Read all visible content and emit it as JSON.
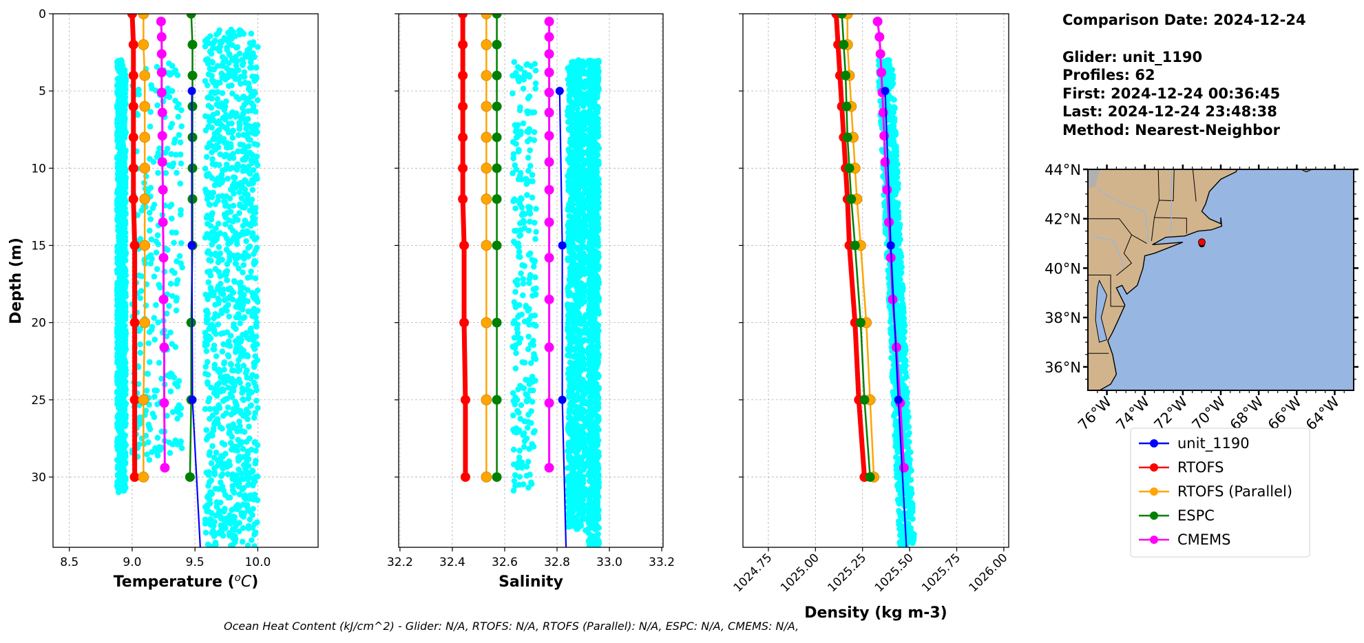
{
  "info": {
    "comparison_date": "Comparison Date: 2024-12-24",
    "glider": "Glider: unit_1190",
    "profiles": "Profiles: 62",
    "first": "First: 2024-12-24 00:36:45",
    "last": "Last: 2024-12-24 23:48:38",
    "method": "Method: Nearest-Neighbor"
  },
  "footer": "Ocean Heat Content (kJ/cm^2) - Glider: N/A,  RTOFS: N/A,  RTOFS (Parallel): N/A,  ESPC: N/A,  CMEMS: N/A,",
  "legend": {
    "entries": [
      {
        "name": "unit_1190",
        "color": "#0000ff"
      },
      {
        "name": "RTOFS",
        "color": "#ff0000"
      },
      {
        "name": "RTOFS (Parallel)",
        "color": "#ffa500"
      },
      {
        "name": "ESPC",
        "color": "#008000"
      },
      {
        "name": "CMEMS",
        "color": "#ff00ff"
      }
    ]
  },
  "chart_data": [
    {
      "type": "line",
      "key": "temperature",
      "title": "",
      "xlabel_parts": [
        "Temperature (",
        "o",
        "C",
        ")"
      ],
      "ylabel": "Depth (m)",
      "xlim": [
        8.37,
        10.48
      ],
      "ylim": [
        34.55,
        0
      ],
      "y_inverted": true,
      "xticks": [
        "8.5",
        "9.0",
        "9.5",
        "10.0"
      ],
      "yticks": [
        "0",
        "5",
        "10",
        "15",
        "20",
        "25",
        "30"
      ],
      "grid": true,
      "scatter_color": "#00ffff",
      "glider_scatter_bands": [
        {
          "x": [
            8.88,
            8.95
          ],
          "depth": [
            3,
            31
          ],
          "density": "dense"
        },
        {
          "x": [
            9.0,
            9.4
          ],
          "depth": [
            3,
            29
          ],
          "density": "sparse"
        },
        {
          "x": [
            9.58,
            10.0
          ],
          "depth": [
            1,
            34.5
          ],
          "density": "dense"
        }
      ],
      "series": [
        {
          "name": "RTOFS",
          "depths": [
            0,
            2,
            4,
            6,
            8,
            10,
            12,
            15,
            20,
            25,
            30
          ],
          "values": [
            9.0,
            9.01,
            9.01,
            9.01,
            9.01,
            9.01,
            9.01,
            9.02,
            9.02,
            9.02,
            9.02
          ]
        },
        {
          "name": "RTOFS (Parallel)",
          "depths": [
            0,
            2,
            4,
            6,
            8,
            10,
            12,
            15,
            20,
            25,
            30
          ],
          "values": [
            9.09,
            9.09,
            9.1,
            9.1,
            9.1,
            9.1,
            9.1,
            9.1,
            9.1,
            9.09,
            9.09
          ]
        },
        {
          "name": "ESPC",
          "depths": [
            0,
            2,
            4,
            6,
            8,
            10,
            12,
            15,
            20,
            25,
            30
          ],
          "values": [
            9.47,
            9.48,
            9.48,
            9.48,
            9.48,
            9.48,
            9.48,
            9.48,
            9.47,
            9.47,
            9.46
          ]
        },
        {
          "name": "CMEMS",
          "depths": [
            0.5,
            1.5,
            2.6,
            3.8,
            5.1,
            6.4,
            7.9,
            9.6,
            11.4,
            13.5,
            15.8,
            18.5,
            21.6,
            25.2,
            29.4
          ],
          "values": [
            9.23,
            9.235,
            9.235,
            9.235,
            9.235,
            9.24,
            9.24,
            9.24,
            9.245,
            9.245,
            9.25,
            9.25,
            9.255,
            9.255,
            9.26
          ]
        },
        {
          "name": "unit_1190",
          "depths": [
            5,
            15,
            25,
            35
          ],
          "values": [
            9.475,
            9.475,
            9.48,
            9.545
          ]
        }
      ]
    },
    {
      "type": "line",
      "key": "salinity",
      "title": "",
      "xlabel_parts": [
        "Salinity"
      ],
      "ylabel": "",
      "xlim": [
        32.195,
        33.205
      ],
      "ylim": [
        34.55,
        0
      ],
      "y_inverted": true,
      "xticks": [
        "32.2",
        "32.4",
        "32.6",
        "32.8",
        "33.0",
        "33.2"
      ],
      "yticks": [
        "0",
        "5",
        "10",
        "15",
        "20",
        "25",
        "30"
      ],
      "grid": true,
      "scatter_color": "#00ffff",
      "glider_scatter_bands": [
        {
          "x": [
            32.63,
            32.72
          ],
          "depth": [
            3,
            31
          ],
          "density": "sparse"
        },
        {
          "x": [
            32.84,
            32.91
          ],
          "depth": [
            3,
            33.5
          ],
          "density": "dense"
        },
        {
          "x": [
            32.92,
            32.96
          ],
          "depth": [
            3,
            35
          ],
          "density": "dense"
        }
      ],
      "series": [
        {
          "name": "RTOFS",
          "depths": [
            0,
            2,
            4,
            6,
            8,
            10,
            12,
            15,
            20,
            25,
            30
          ],
          "values": [
            32.44,
            32.44,
            32.44,
            32.44,
            32.44,
            32.44,
            32.44,
            32.445,
            32.445,
            32.45,
            32.45
          ]
        },
        {
          "name": "RTOFS (Parallel)",
          "depths": [
            0,
            2,
            4,
            6,
            8,
            10,
            12,
            15,
            20,
            25,
            30
          ],
          "values": [
            32.53,
            32.53,
            32.53,
            32.53,
            32.53,
            32.53,
            32.53,
            32.53,
            32.53,
            32.53,
            32.53
          ]
        },
        {
          "name": "ESPC",
          "depths": [
            0,
            2,
            4,
            6,
            8,
            10,
            12,
            15,
            20,
            25,
            30
          ],
          "values": [
            32.57,
            32.57,
            32.57,
            32.57,
            32.57,
            32.57,
            32.57,
            32.57,
            32.57,
            32.57,
            32.57
          ]
        },
        {
          "name": "CMEMS",
          "depths": [
            0.5,
            1.5,
            2.6,
            3.8,
            5.1,
            6.4,
            7.9,
            9.6,
            11.4,
            13.5,
            15.8,
            18.5,
            21.6,
            25.2,
            29.4
          ],
          "values": [
            32.77,
            32.77,
            32.77,
            32.77,
            32.77,
            32.77,
            32.77,
            32.77,
            32.77,
            32.77,
            32.77,
            32.77,
            32.77,
            32.77,
            32.77
          ]
        },
        {
          "name": "unit_1190",
          "depths": [
            5,
            15,
            25,
            35
          ],
          "values": [
            32.81,
            32.82,
            32.82,
            32.835
          ]
        }
      ]
    },
    {
      "type": "line",
      "key": "density",
      "title": "",
      "xlabel_parts": [
        "Density (kg m-3)"
      ],
      "ylabel": "",
      "xlim": [
        1024.615,
        1026.026
      ],
      "ylim": [
        34.55,
        0
      ],
      "y_inverted": true,
      "xticks": [
        "1024.75",
        "1025.00",
        "1025.25",
        "1025.50",
        "1025.75",
        "1026.00"
      ],
      "yticks": [
        "0",
        "5",
        "10",
        "15",
        "20",
        "25",
        "30"
      ],
      "grid": true,
      "scatter_color": "#00ffff",
      "glider_scatter_bands": [
        {
          "x": [
            1025.33,
            1025.41
          ],
          "x_at_max_depth": [
            1025.45,
            1025.53
          ],
          "depth": [
            3,
            35
          ],
          "density": "dense"
        }
      ],
      "series": [
        {
          "name": "RTOFS",
          "depths": [
            0,
            2,
            4,
            6,
            8,
            10,
            12,
            15,
            20,
            25,
            30
          ],
          "values": [
            1025.11,
            1025.12,
            1025.13,
            1025.14,
            1025.15,
            1025.16,
            1025.17,
            1025.18,
            1025.21,
            1025.23,
            1025.26
          ]
        },
        {
          "name": "RTOFS (Parallel)",
          "depths": [
            0,
            2,
            4,
            6,
            8,
            10,
            12,
            15,
            20,
            25,
            30
          ],
          "values": [
            1025.17,
            1025.17,
            1025.18,
            1025.19,
            1025.2,
            1025.21,
            1025.22,
            1025.24,
            1025.27,
            1025.29,
            1025.31
          ]
        },
        {
          "name": "ESPC",
          "depths": [
            0,
            2,
            4,
            6,
            8,
            10,
            12,
            15,
            20,
            25,
            30
          ],
          "values": [
            1025.14,
            1025.15,
            1025.16,
            1025.165,
            1025.17,
            1025.18,
            1025.19,
            1025.21,
            1025.24,
            1025.26,
            1025.29
          ]
        },
        {
          "name": "CMEMS",
          "depths": [
            0.5,
            1.5,
            2.6,
            3.8,
            5.1,
            6.4,
            7.9,
            9.6,
            11.4,
            13.5,
            15.8,
            18.5,
            21.6,
            25.2,
            29.4
          ],
          "values": [
            1025.33,
            1025.34,
            1025.345,
            1025.35,
            1025.355,
            1025.36,
            1025.365,
            1025.37,
            1025.38,
            1025.39,
            1025.4,
            1025.41,
            1025.43,
            1025.45,
            1025.47
          ]
        },
        {
          "name": "unit_1190",
          "depths": [
            5,
            15,
            25,
            35
          ],
          "values": [
            1025.37,
            1025.4,
            1025.44,
            1025.485
          ]
        }
      ]
    },
    {
      "type": "map",
      "key": "map",
      "lon_range": [
        -77.0,
        -63.0
      ],
      "lat_range": [
        35.05,
        44.0
      ],
      "lon_ticks": [
        "76°W",
        "74°W",
        "72°W",
        "70°W",
        "68°W",
        "66°W",
        "64°W"
      ],
      "lat_ticks": [
        "44°N",
        "42°N",
        "40°N",
        "38°N",
        "36°N"
      ],
      "ocean_color": "#97b6e1",
      "land_color": "#d2b48c",
      "glider_position": {
        "lon": -71.0,
        "lat": 41.05,
        "color": "#ff0000"
      }
    }
  ]
}
